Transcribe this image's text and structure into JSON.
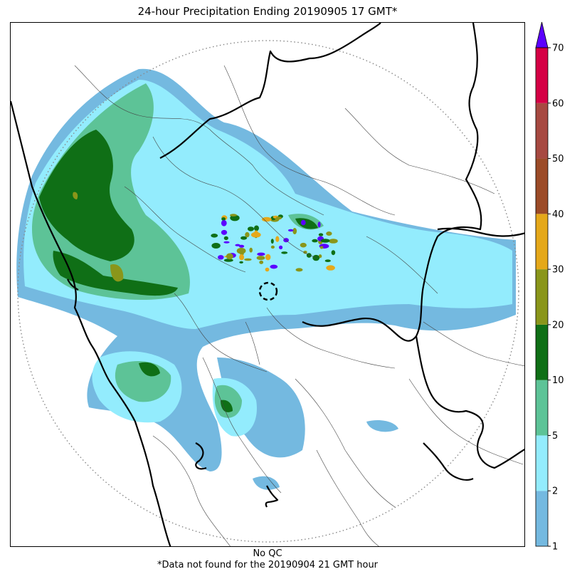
{
  "title": "24-hour Precipitation Ending 20190905 17 GMT*",
  "footer": {
    "qc_label": "No QC",
    "note": "*Data not found for the 20190904 21 GMT hour"
  },
  "colorbar": {
    "levels": [
      1,
      2,
      5,
      10,
      20,
      30,
      40,
      50,
      60,
      70
    ],
    "tick_labels": [
      "1",
      "2",
      "5",
      "10",
      "20",
      "30",
      "40",
      "50",
      "60",
      "70"
    ],
    "colors": [
      "#74b9e0",
      "#93ecfd",
      "#5dc397",
      "#0f6f16",
      "#8a961a",
      "#e5a81a",
      "#9c4b27",
      "#a74941",
      "#d50045"
    ],
    "over_color": "#5b00ff",
    "extend": "max"
  },
  "map": {
    "radar_marker": "radar-site-circle",
    "range_ring": "dotted",
    "precip_colors": {
      "light": "#74b9e0",
      "low": "#93ecfd",
      "moderate": "#5dc397",
      "heavy": "#0f6f16",
      "intense": "#8a961a",
      "very_intense": "#e5a81a",
      "extreme": "#5b00ff"
    }
  }
}
